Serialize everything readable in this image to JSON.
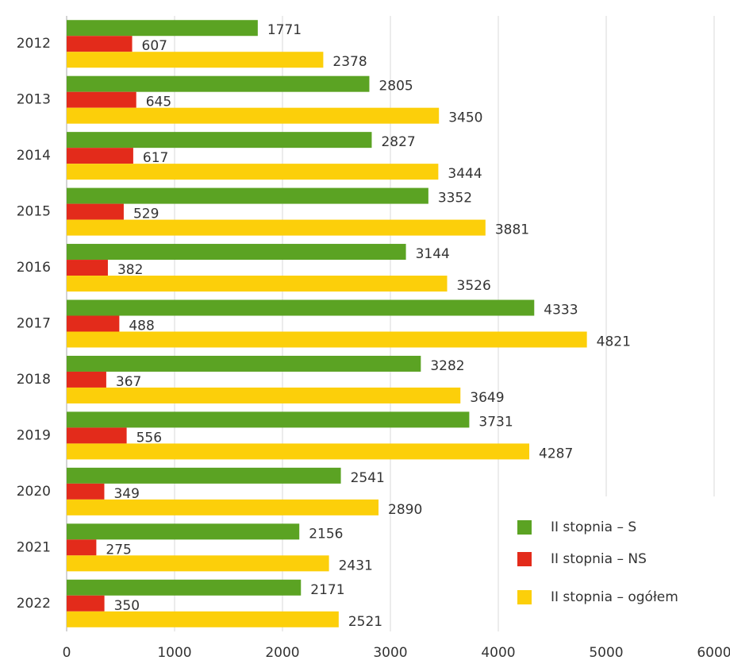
{
  "chart_data": {
    "type": "bar",
    "orientation": "horizontal",
    "categories": [
      "2012",
      "2013",
      "2014",
      "2015",
      "2016",
      "2017",
      "2018",
      "2019",
      "2020",
      "2021",
      "2022"
    ],
    "series": [
      {
        "name": "II stopnia – S",
        "color": "#5ba323",
        "values": [
          1771,
          2805,
          2827,
          3352,
          3144,
          4333,
          3282,
          3731,
          2541,
          2156,
          2171
        ]
      },
      {
        "name": "II stopnia – NS",
        "color": "#e32b1b",
        "values": [
          607,
          645,
          617,
          529,
          382,
          488,
          367,
          556,
          349,
          275,
          350
        ]
      },
      {
        "name": "II stopnia – ogółem",
        "color": "#fccf0a",
        "values": [
          2378,
          3450,
          3444,
          3881,
          3526,
          4821,
          3649,
          4287,
          2890,
          2431,
          2521
        ]
      }
    ],
    "xlim": [
      0,
      6000
    ],
    "xticks": [
      0,
      1000,
      2000,
      3000,
      4000,
      5000,
      6000
    ],
    "grid": true,
    "legend": "lower right"
  }
}
